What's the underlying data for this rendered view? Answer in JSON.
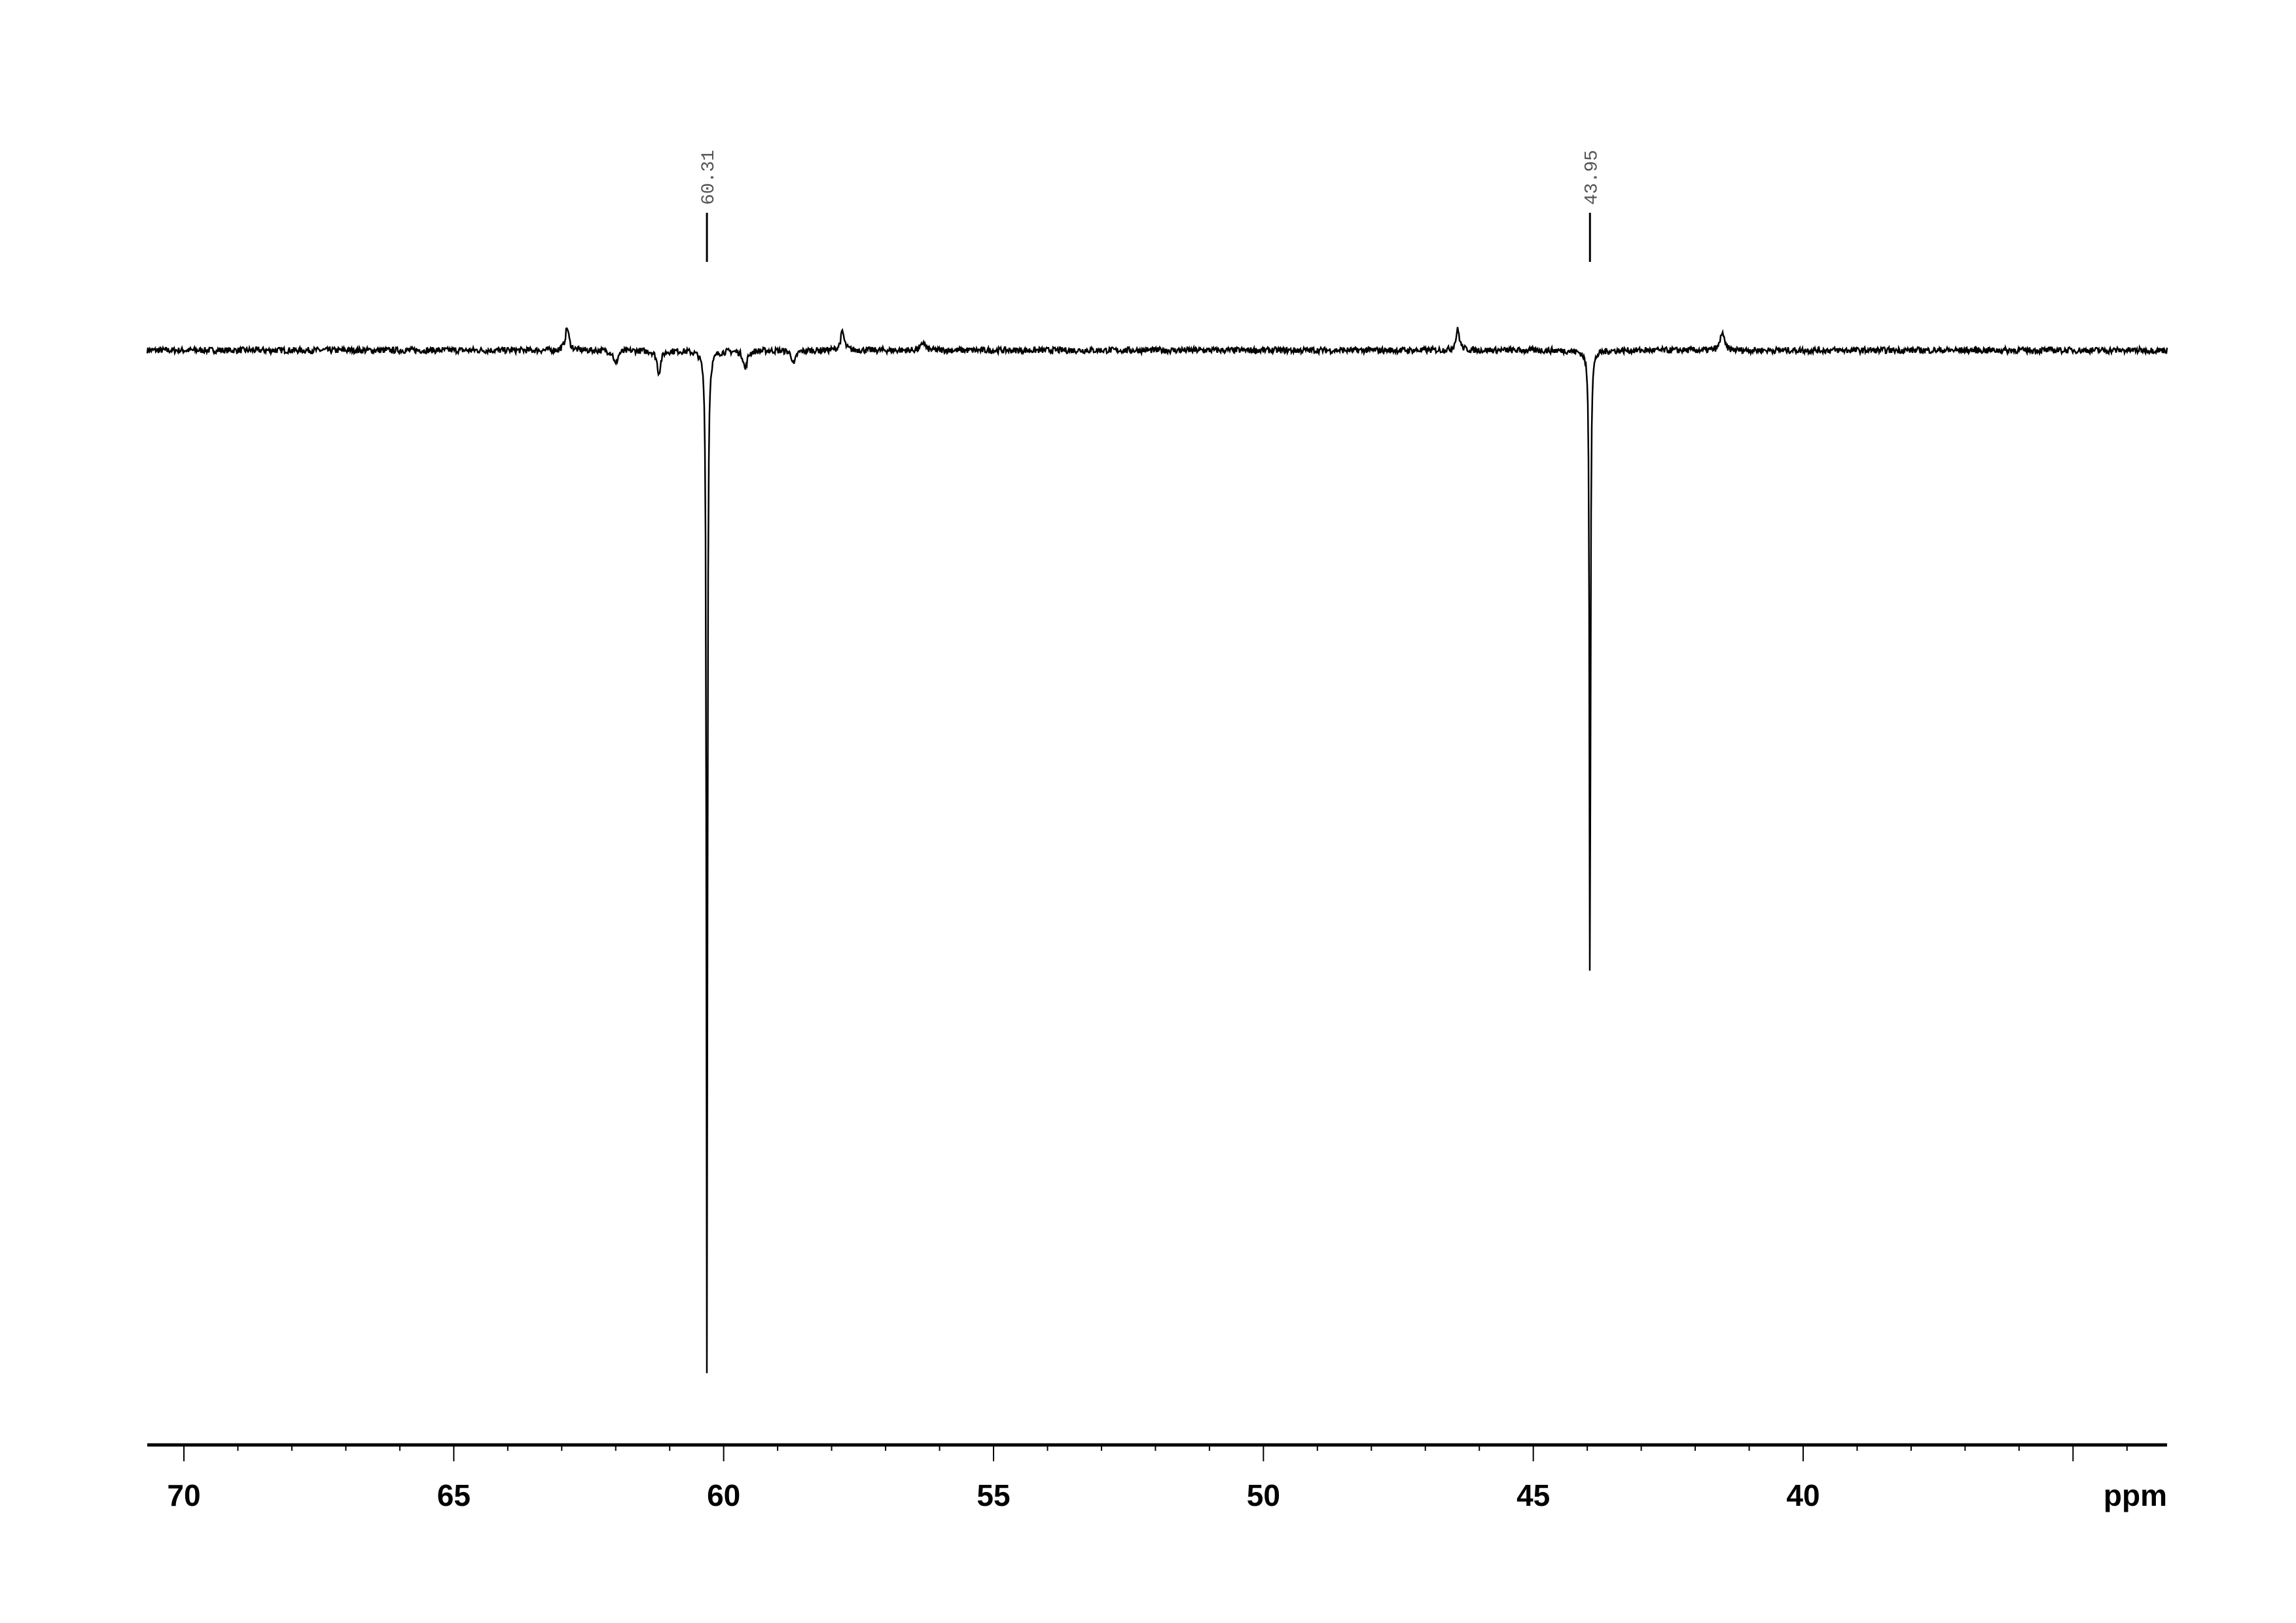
{
  "chart_data": {
    "type": "line",
    "title": "",
    "xlabel": "ppm",
    "ylabel": "",
    "xlim": [
      70.7,
      33.2
    ],
    "x_reversed": true,
    "grid": false,
    "x_ticks": [
      70,
      65,
      60,
      55,
      50,
      45,
      40
    ],
    "x_tick_labels": [
      "70",
      "65",
      "60",
      "55",
      "50",
      "45",
      "40"
    ],
    "minor_tick_step": 1,
    "line_color": "#000000",
    "peaks": [
      {
        "ppm": 60.31,
        "intensity": -1.0,
        "label": "60.31"
      },
      {
        "ppm": 43.95,
        "intensity": -0.64,
        "label": "43.95"
      }
    ],
    "minor_peaks": [
      {
        "ppm": 62.9,
        "intensity": 0.022
      },
      {
        "ppm": 62.0,
        "intensity": -0.014
      },
      {
        "ppm": 61.2,
        "intensity": -0.022
      },
      {
        "ppm": 59.6,
        "intensity": -0.018
      },
      {
        "ppm": 58.7,
        "intensity": -0.014
      },
      {
        "ppm": 57.8,
        "intensity": 0.018
      },
      {
        "ppm": 56.3,
        "intensity": 0.008
      },
      {
        "ppm": 46.4,
        "intensity": 0.02
      },
      {
        "ppm": 41.5,
        "intensity": 0.018
      }
    ]
  }
}
